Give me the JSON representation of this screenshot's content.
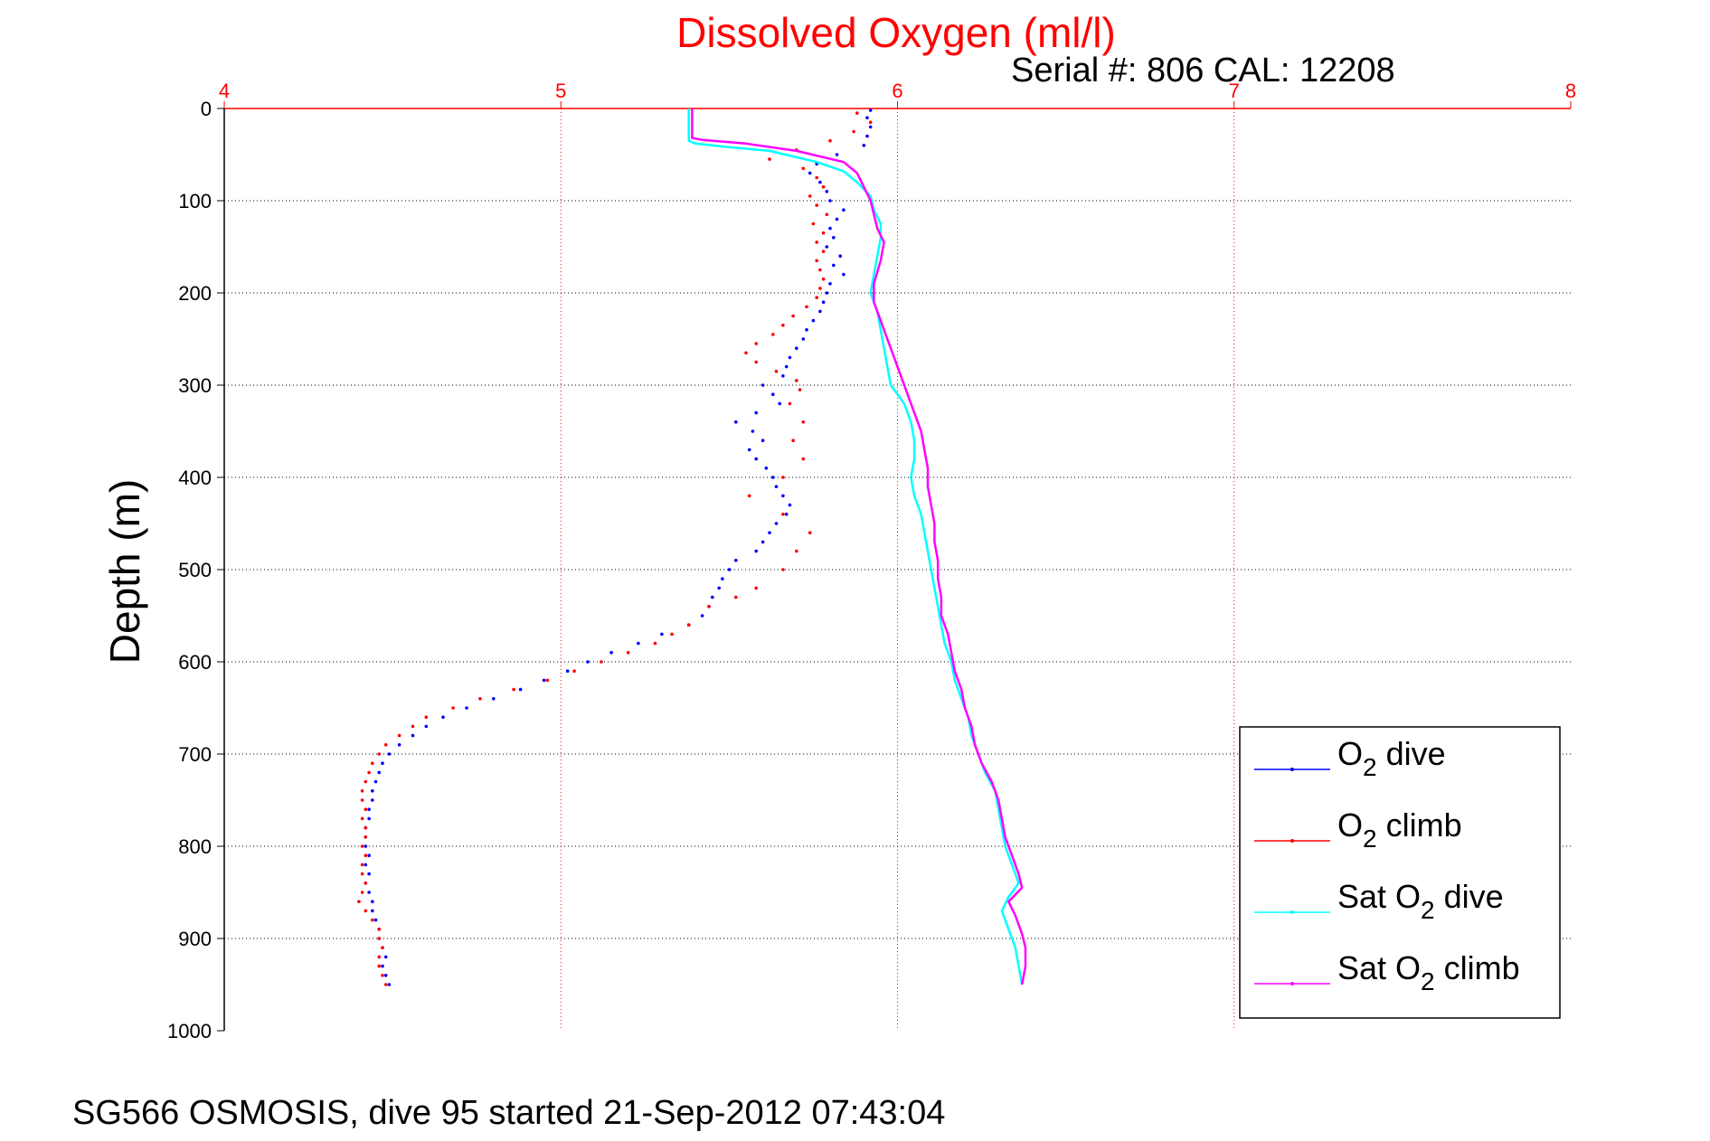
{
  "chart_data": {
    "type": "line",
    "title": "Dissolved Oxygen (ml/l)",
    "subtitle": "Serial #: 806  CAL: 12208",
    "xlabel": "",
    "ylabel": "Depth (m)",
    "footer": "SG566 OSMOSIS, dive 95 started 21-Sep-2012 07:43:04",
    "xlim": [
      4,
      8
    ],
    "ylim": [
      0,
      1000
    ],
    "y_reversed": true,
    "x_axis_position": "top",
    "x_ticks": [
      "4",
      "5",
      "6",
      "7",
      "8"
    ],
    "y_ticks": [
      "0",
      "100",
      "200",
      "300",
      "400",
      "500",
      "600",
      "700",
      "800",
      "900",
      "1000"
    ],
    "grid": true,
    "legend_position": "bottom-right",
    "colors": {
      "title": "#ff0000",
      "x_axis": "#ff0000",
      "grid_x": "#ff0000",
      "grid_y": "#000000",
      "o2_dive": "#0000ff",
      "o2_climb": "#ff0000",
      "sat_dive": "#00ffff",
      "sat_climb": "#ff00ff"
    },
    "legend": [
      {
        "id": "o2_dive",
        "prefix": "O",
        "sub": "2",
        "suffix": " dive"
      },
      {
        "id": "o2_climb",
        "prefix": "O",
        "sub": "2",
        "suffix": " climb"
      },
      {
        "id": "sat_dive",
        "prefix": "Sat O",
        "sub": "2",
        "suffix": " dive"
      },
      {
        "id": "sat_climb",
        "prefix": "Sat O",
        "sub": "2",
        "suffix": " climb"
      }
    ],
    "series": [
      {
        "id": "o2_dive",
        "name": "O2 dive",
        "style": "dots",
        "points": [
          [
            5.92,
            2
          ],
          [
            5.91,
            10
          ],
          [
            5.92,
            20
          ],
          [
            5.91,
            30
          ],
          [
            5.9,
            40
          ],
          [
            5.82,
            50
          ],
          [
            5.76,
            60
          ],
          [
            5.74,
            70
          ],
          [
            5.77,
            80
          ],
          [
            5.79,
            90
          ],
          [
            5.8,
            100
          ],
          [
            5.84,
            110
          ],
          [
            5.82,
            120
          ],
          [
            5.8,
            130
          ],
          [
            5.81,
            140
          ],
          [
            5.79,
            150
          ],
          [
            5.83,
            160
          ],
          [
            5.81,
            170
          ],
          [
            5.84,
            180
          ],
          [
            5.8,
            190
          ],
          [
            5.79,
            200
          ],
          [
            5.78,
            210
          ],
          [
            5.77,
            220
          ],
          [
            5.75,
            230
          ],
          [
            5.73,
            240
          ],
          [
            5.72,
            250
          ],
          [
            5.7,
            260
          ],
          [
            5.68,
            270
          ],
          [
            5.67,
            280
          ],
          [
            5.66,
            290
          ],
          [
            5.6,
            300
          ],
          [
            5.63,
            310
          ],
          [
            5.65,
            320
          ],
          [
            5.58,
            330
          ],
          [
            5.52,
            340
          ],
          [
            5.57,
            350
          ],
          [
            5.6,
            360
          ],
          [
            5.56,
            370
          ],
          [
            5.58,
            380
          ],
          [
            5.61,
            390
          ],
          [
            5.63,
            400
          ],
          [
            5.64,
            410
          ],
          [
            5.66,
            420
          ],
          [
            5.68,
            430
          ],
          [
            5.67,
            440
          ],
          [
            5.64,
            450
          ],
          [
            5.62,
            460
          ],
          [
            5.6,
            470
          ],
          [
            5.58,
            480
          ],
          [
            5.52,
            490
          ],
          [
            5.5,
            500
          ],
          [
            5.48,
            510
          ],
          [
            5.47,
            520
          ],
          [
            5.45,
            530
          ],
          [
            5.44,
            540
          ],
          [
            5.42,
            550
          ],
          [
            5.38,
            560
          ],
          [
            5.3,
            570
          ],
          [
            5.23,
            580
          ],
          [
            5.15,
            590
          ],
          [
            5.08,
            600
          ],
          [
            5.02,
            610
          ],
          [
            4.95,
            620
          ],
          [
            4.88,
            630
          ],
          [
            4.8,
            640
          ],
          [
            4.72,
            650
          ],
          [
            4.65,
            660
          ],
          [
            4.6,
            670
          ],
          [
            4.56,
            680
          ],
          [
            4.52,
            690
          ],
          [
            4.49,
            700
          ],
          [
            4.47,
            710
          ],
          [
            4.46,
            720
          ],
          [
            4.45,
            730
          ],
          [
            4.44,
            740
          ],
          [
            4.44,
            750
          ],
          [
            4.43,
            760
          ],
          [
            4.43,
            770
          ],
          [
            4.42,
            780
          ],
          [
            4.42,
            790
          ],
          [
            4.42,
            800
          ],
          [
            4.43,
            810
          ],
          [
            4.42,
            820
          ],
          [
            4.43,
            830
          ],
          [
            4.42,
            840
          ],
          [
            4.43,
            850
          ],
          [
            4.44,
            860
          ],
          [
            4.44,
            870
          ],
          [
            4.45,
            880
          ],
          [
            4.46,
            890
          ],
          [
            4.46,
            900
          ],
          [
            4.47,
            910
          ],
          [
            4.48,
            920
          ],
          [
            4.47,
            930
          ],
          [
            4.48,
            940
          ],
          [
            4.49,
            950
          ]
        ]
      },
      {
        "id": "o2_climb",
        "name": "O2 climb",
        "style": "dots",
        "points": [
          [
            5.88,
            5
          ],
          [
            5.92,
            15
          ],
          [
            5.87,
            25
          ],
          [
            5.8,
            35
          ],
          [
            5.7,
            45
          ],
          [
            5.62,
            55
          ],
          [
            5.72,
            65
          ],
          [
            5.76,
            75
          ],
          [
            5.78,
            85
          ],
          [
            5.74,
            95
          ],
          [
            5.76,
            105
          ],
          [
            5.79,
            115
          ],
          [
            5.75,
            125
          ],
          [
            5.78,
            135
          ],
          [
            5.76,
            145
          ],
          [
            5.78,
            155
          ],
          [
            5.76,
            165
          ],
          [
            5.77,
            175
          ],
          [
            5.78,
            185
          ],
          [
            5.77,
            195
          ],
          [
            5.76,
            205
          ],
          [
            5.73,
            215
          ],
          [
            5.69,
            225
          ],
          [
            5.66,
            235
          ],
          [
            5.63,
            245
          ],
          [
            5.58,
            255
          ],
          [
            5.55,
            265
          ],
          [
            5.58,
            275
          ],
          [
            5.64,
            285
          ],
          [
            5.7,
            295
          ],
          [
            5.71,
            305
          ],
          [
            5.68,
            320
          ],
          [
            5.72,
            340
          ],
          [
            5.69,
            360
          ],
          [
            5.72,
            380
          ],
          [
            5.66,
            400
          ],
          [
            5.56,
            420
          ],
          [
            5.66,
            440
          ],
          [
            5.74,
            460
          ],
          [
            5.7,
            480
          ],
          [
            5.66,
            500
          ],
          [
            5.58,
            520
          ],
          [
            5.52,
            530
          ],
          [
            5.44,
            540
          ],
          [
            5.38,
            560
          ],
          [
            5.33,
            570
          ],
          [
            5.28,
            580
          ],
          [
            5.2,
            590
          ],
          [
            5.12,
            600
          ],
          [
            5.04,
            610
          ],
          [
            4.96,
            620
          ],
          [
            4.86,
            630
          ],
          [
            4.76,
            640
          ],
          [
            4.68,
            650
          ],
          [
            4.6,
            660
          ],
          [
            4.56,
            670
          ],
          [
            4.52,
            680
          ],
          [
            4.48,
            690
          ],
          [
            4.46,
            700
          ],
          [
            4.44,
            710
          ],
          [
            4.43,
            720
          ],
          [
            4.42,
            730
          ],
          [
            4.41,
            740
          ],
          [
            4.41,
            750
          ],
          [
            4.42,
            760
          ],
          [
            4.41,
            770
          ],
          [
            4.42,
            780
          ],
          [
            4.42,
            790
          ],
          [
            4.41,
            800
          ],
          [
            4.42,
            810
          ],
          [
            4.41,
            820
          ],
          [
            4.41,
            830
          ],
          [
            4.42,
            840
          ],
          [
            4.41,
            850
          ],
          [
            4.4,
            860
          ],
          [
            4.42,
            870
          ],
          [
            4.44,
            880
          ],
          [
            4.46,
            890
          ],
          [
            4.46,
            900
          ],
          [
            4.47,
            910
          ],
          [
            4.46,
            920
          ],
          [
            4.46,
            930
          ],
          [
            4.47,
            940
          ],
          [
            4.48,
            950
          ]
        ]
      },
      {
        "id": "sat_dive",
        "name": "Sat O2 dive",
        "style": "line",
        "points": [
          [
            5.38,
            0
          ],
          [
            5.38,
            20
          ],
          [
            5.38,
            35
          ],
          [
            5.4,
            38
          ],
          [
            5.5,
            42
          ],
          [
            5.62,
            46
          ],
          [
            5.76,
            58
          ],
          [
            5.84,
            68
          ],
          [
            5.88,
            80
          ],
          [
            5.92,
            95
          ],
          [
            5.93,
            110
          ],
          [
            5.95,
            125
          ],
          [
            5.95,
            140
          ],
          [
            5.94,
            160
          ],
          [
            5.93,
            180
          ],
          [
            5.92,
            200
          ],
          [
            5.94,
            220
          ],
          [
            5.95,
            240
          ],
          [
            5.96,
            260
          ],
          [
            5.97,
            280
          ],
          [
            5.98,
            300
          ],
          [
            6.02,
            320
          ],
          [
            6.04,
            340
          ],
          [
            6.05,
            360
          ],
          [
            6.05,
            380
          ],
          [
            6.04,
            400
          ],
          [
            6.05,
            420
          ],
          [
            6.07,
            440
          ],
          [
            6.08,
            460
          ],
          [
            6.09,
            480
          ],
          [
            6.1,
            500
          ],
          [
            6.11,
            520
          ],
          [
            6.12,
            540
          ],
          [
            6.13,
            560
          ],
          [
            6.14,
            580
          ],
          [
            6.16,
            600
          ],
          [
            6.17,
            620
          ],
          [
            6.19,
            640
          ],
          [
            6.21,
            660
          ],
          [
            6.22,
            680
          ],
          [
            6.24,
            700
          ],
          [
            6.26,
            720
          ],
          [
            6.29,
            740
          ],
          [
            6.3,
            760
          ],
          [
            6.31,
            780
          ],
          [
            6.32,
            800
          ],
          [
            6.34,
            820
          ],
          [
            6.36,
            840
          ],
          [
            6.33,
            855
          ],
          [
            6.31,
            870
          ],
          [
            6.33,
            890
          ],
          [
            6.35,
            910
          ],
          [
            6.36,
            930
          ],
          [
            6.37,
            950
          ]
        ]
      },
      {
        "id": "sat_climb",
        "name": "Sat O2 climb",
        "style": "line",
        "points": [
          [
            5.39,
            0
          ],
          [
            5.39,
            20
          ],
          [
            5.39,
            32
          ],
          [
            5.42,
            34
          ],
          [
            5.55,
            38
          ],
          [
            5.7,
            46
          ],
          [
            5.84,
            58
          ],
          [
            5.88,
            70
          ],
          [
            5.9,
            85
          ],
          [
            5.92,
            100
          ],
          [
            5.93,
            115
          ],
          [
            5.94,
            130
          ],
          [
            5.96,
            145
          ],
          [
            5.95,
            165
          ],
          [
            5.93,
            190
          ],
          [
            5.93,
            210
          ],
          [
            5.95,
            230
          ],
          [
            5.97,
            250
          ],
          [
            5.99,
            270
          ],
          [
            6.01,
            290
          ],
          [
            6.03,
            310
          ],
          [
            6.05,
            330
          ],
          [
            6.07,
            350
          ],
          [
            6.08,
            370
          ],
          [
            6.09,
            390
          ],
          [
            6.09,
            410
          ],
          [
            6.1,
            430
          ],
          [
            6.11,
            450
          ],
          [
            6.11,
            470
          ],
          [
            6.12,
            490
          ],
          [
            6.12,
            510
          ],
          [
            6.13,
            530
          ],
          [
            6.13,
            550
          ],
          [
            6.15,
            570
          ],
          [
            6.16,
            590
          ],
          [
            6.17,
            610
          ],
          [
            6.19,
            630
          ],
          [
            6.2,
            650
          ],
          [
            6.22,
            670
          ],
          [
            6.23,
            690
          ],
          [
            6.25,
            710
          ],
          [
            6.28,
            730
          ],
          [
            6.3,
            750
          ],
          [
            6.31,
            770
          ],
          [
            6.32,
            790
          ],
          [
            6.34,
            810
          ],
          [
            6.36,
            830
          ],
          [
            6.37,
            845
          ],
          [
            6.33,
            860
          ],
          [
            6.35,
            875
          ],
          [
            6.37,
            895
          ],
          [
            6.38,
            910
          ],
          [
            6.38,
            930
          ],
          [
            6.37,
            950
          ]
        ]
      }
    ]
  }
}
